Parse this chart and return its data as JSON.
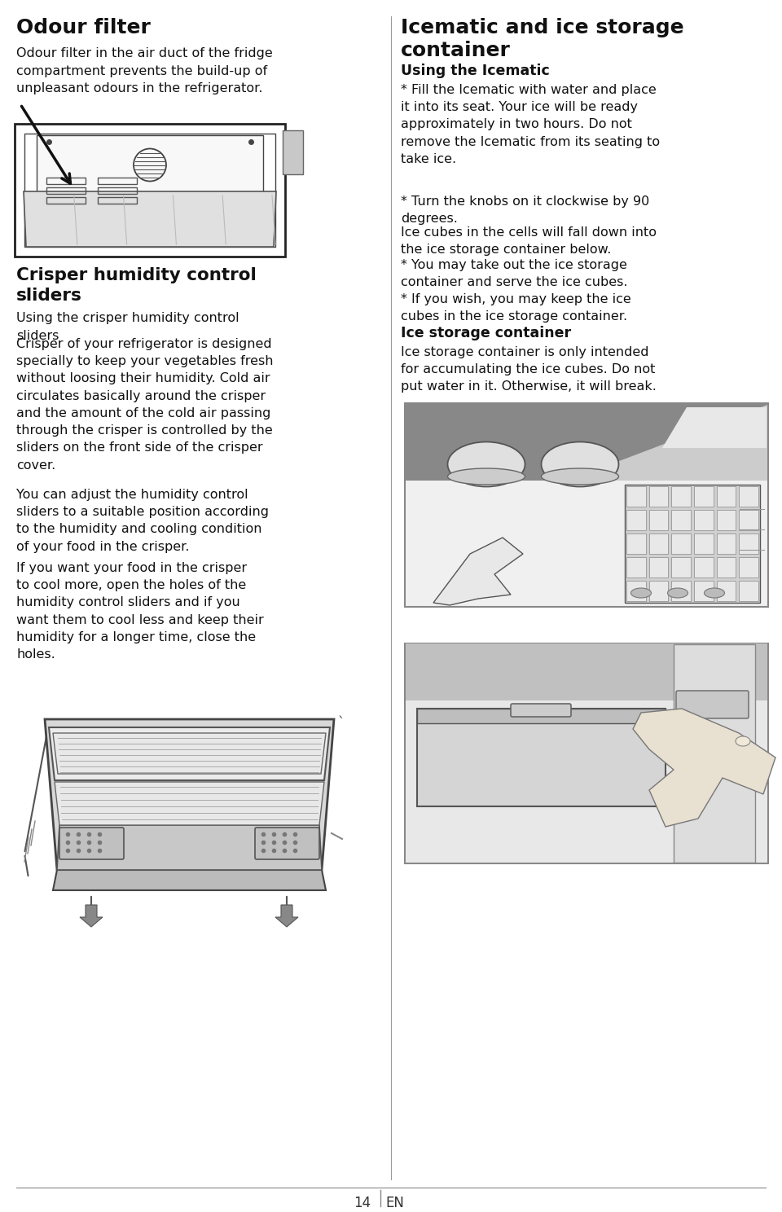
{
  "bg_color": "#ffffff",
  "left_col": {
    "s1_title": "Odour filter",
    "s1_body": "Odour filter in the air duct of the fridge\ncompartment prevents the build-up of\nunpleasant odours in the refrigerator.",
    "s2_title": "Crisper humidity control\nsliders",
    "s2_p1": "Using the crisper humidity control\nsliders",
    "s2_p2": "Crisper of your refrigerator is designed\nspecially to keep your vegetables fresh\nwithout loosing their humidity. Cold air\ncirculates basically around the crisper\nand the amount of the cold air passing\nthrough the crisper is controlled by the\nsliders on the front side of the crisper\ncover.",
    "s2_p3": "You can adjust the humidity control\nsliders to a suitable position according\nto the humidity and cooling condition\nof your food in the crisper.",
    "s2_p4": "If you want your food in the crisper\nto cool more, open the holes of the\nhumidity control sliders and if you\nwant them to cool less and keep their\nhumidity for a longer time, close the\nholes."
  },
  "right_col": {
    "s1_title": "Icematic and ice storage\ncontainer",
    "s1_sub": "Using the Icematic",
    "s1_b1": "* Fill the Icematic with water and place\nit into its seat. Your ice will be ready\napproximately in two hours. Do not\nremove the Icematic from its seating to\ntake ice.",
    "s1_b2": "* Turn the knobs on it clockwise by 90\ndegrees.",
    "s1_p1": "Ice cubes in the cells will fall down into\nthe ice storage container below.",
    "s1_b3": "* You may take out the ice storage\ncontainer and serve the ice cubes.",
    "s1_b4": "* If you wish, you may keep the ice\ncubes in the ice storage container.",
    "s2_sub": "Ice storage container",
    "s2_body": "Ice storage container is only intended\nfor accumulating the ice cubes. Do not\nput water in it. Otherwise, it will break."
  },
  "footer_page": "14",
  "footer_lang": "EN"
}
